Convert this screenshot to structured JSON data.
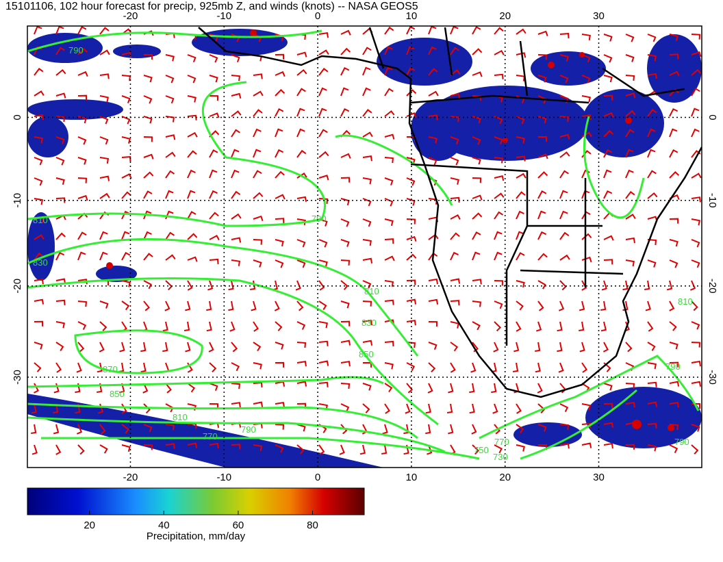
{
  "title": "15101106, 102 hour forecast for precip, 925mb Z, and winds (knots) -- NASA GEOS5",
  "map": {
    "lonlim": [
      -31,
      41
    ],
    "latlim": [
      11,
      -39
    ],
    "lon_ticks": [
      -20,
      -10,
      0,
      10,
      20,
      30
    ],
    "lat_ticks": [
      0,
      -10,
      -20,
      -30
    ],
    "contour_labels": [
      "790",
      "810",
      "830",
      "790",
      "810",
      "830",
      "850",
      "870",
      "850",
      "810",
      "790",
      "770",
      "770",
      "750",
      "730",
      "810",
      "790",
      "790"
    ]
  },
  "colorbar": {
    "range": [
      3.3,
      93.9
    ],
    "ticks": [
      20,
      40,
      60,
      80
    ],
    "label": "Precipitation, mm/day"
  }
}
